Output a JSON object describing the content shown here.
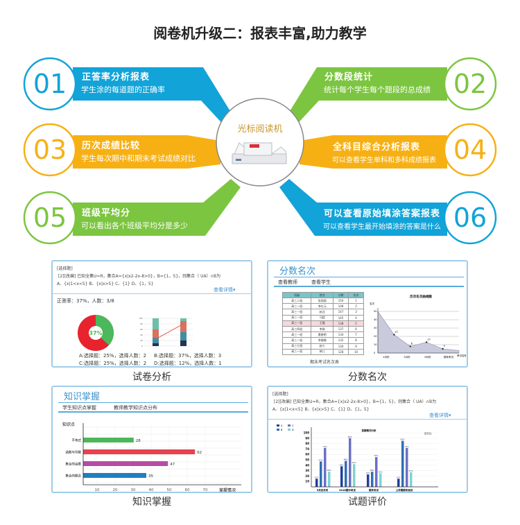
{
  "title": "阅卷机升级二：报表丰富,助力教学",
  "center": {
    "label": "光标阅读机"
  },
  "colors": {
    "blue": "#12a3d8",
    "green": "#7cc540",
    "orange": "#f7b014"
  },
  "features": [
    {
      "num": "01",
      "title": "正答率分析报表",
      "desc": "学生涂的每道题的正确率",
      "color": "blue"
    },
    {
      "num": "02",
      "title": "分数段统计",
      "desc": "统计每个学生每个题段的总成绩",
      "color": "green"
    },
    {
      "num": "03",
      "title": "历次成绩比较",
      "desc": "学生每次期中和期末考试成绩对比",
      "color": "orange"
    },
    {
      "num": "04",
      "title": "全科目综合分析报表",
      "desc": "可以查看学生单科和多科成绩报表",
      "color": "orange"
    },
    {
      "num": "05",
      "title": "班级平均分",
      "desc": "可以看出各个班级平均分是多少",
      "color": "green"
    },
    {
      "num": "06",
      "title": "可以查看原始填涂答案报表",
      "desc": "可以查看学生最开始填涂的答案是什么",
      "color": "blue"
    }
  ],
  "panels": {
    "exam": {
      "caption": "试卷分析",
      "qtype": "[选择题]",
      "question": "[2][改编] 已知全集U=R，集合A={x|x2-2x-8>0}，B={1，5}，则集合（ UA）∩B为",
      "options": "A、{x|1<x<5}    B、{x|x>5}    C、{1}    D、{1，5}",
      "detail_link": "查看详情▾",
      "rate_text": "正答率：37%，人数：3/8",
      "donut_label": "37%",
      "donut_value": 37,
      "stats": [
        "A:选择题：25%，选择人数：2",
        "B:选择题：37%，选择人数：3",
        "C:选择题：25%，选择人数：2",
        "D:选择题：12%，选择人数：1"
      ],
      "stacked": {
        "yticks": [
          0,
          20,
          40,
          60,
          80,
          100
        ],
        "bars": [
          [
            10,
            20,
            30,
            40
          ],
          [
            20,
            30,
            40,
            10
          ]
        ],
        "line": [
          25,
          80
        ],
        "colors": [
          "#1f3550",
          "#3f8fa3",
          "#d9725e",
          "#6dbfa6"
        ]
      }
    },
    "rank": {
      "caption": "分数名次",
      "title": "分数名次",
      "tabs": [
        "查看教师",
        "查看学生"
      ],
      "columns": [
        "班级",
        "姓名",
        "分数",
        "名次"
      ],
      "rows": [
        [
          "高三二班",
          "张丽丽",
          "150",
          "1"
        ],
        [
          "高三一班",
          "李红元",
          "148",
          "2"
        ],
        [
          "高三一班",
          "赵达",
          "147",
          "3"
        ],
        [
          "高三一班",
          "马超",
          "145",
          "4"
        ],
        [
          "高三一班",
          "王磊",
          "138",
          "5"
        ],
        [
          "高三四班",
          "李刚",
          "137",
          "6"
        ],
        [
          "高三一班",
          "黄晓明",
          "134",
          "7"
        ],
        [
          "高三一班",
          "李娜娜",
          "132",
          "8"
        ],
        [
          "高三七班",
          "赵小",
          "130",
          "9"
        ],
        [
          "高三一班",
          "婷儿",
          "128",
          "10"
        ]
      ],
      "table_caption": "期末考试名次表",
      "chart_title": "历次名次曲线图",
      "chart_ylabel": "名次",
      "chart_xlabel": "考试名称",
      "yticks": [
        0,
        10,
        20,
        30,
        40,
        50
      ],
      "points": [
        50,
        22,
        8,
        13,
        5,
        3
      ],
      "point_labels": [
        "",
        "22",
        "8",
        "13",
        "5",
        ""
      ],
      "xlabels": [
        "4月份",
        "5月份",
        "6月份",
        "期末考试"
      ]
    },
    "knowledge": {
      "caption": "知识掌握",
      "title": "知识掌握",
      "tabs": [
        "学生知识点掌握",
        "教师教学知识点分布"
      ],
      "ylabel": "知识点",
      "xlabel": "掌握情况",
      "xticks": [
        10,
        20,
        30,
        40,
        50,
        60,
        70
      ],
      "bars": [
        {
          "label": "不等式",
          "value": 28,
          "color": "#4cb75a"
        },
        {
          "label": "函数与导数",
          "value": 62,
          "color": "#e64250"
        },
        {
          "label": "集合的运算",
          "value": 47,
          "color": "#b44da4"
        },
        {
          "label": "集合的概念",
          "value": 35,
          "color": "#1f7fc0"
        }
      ]
    },
    "evaluation": {
      "caption": "试题评价",
      "qtype": "[选择题]",
      "question": "[2][改编] 已知全集U=R，集合A={x|x2-2x-8>0}，B={1，5}，则集合（ UA）∩B为",
      "options": "A、{x|1<x<5}    B、{x|x>5}    C、{1}    D、{1，5}",
      "detail_link": "查看详情▾",
      "legend": [
        "A",
        "B",
        "C",
        "D"
      ],
      "colors": [
        "#22409a",
        "#2f6fb5",
        "#6b6fc4",
        "#7fd3d3"
      ],
      "chart_title": "答题情况分析",
      "ylabel": "百分比",
      "yticks": [
        10,
        20,
        30,
        40,
        50,
        60,
        70,
        80,
        90,
        100
      ],
      "groups": [
        {
          "label": "5月份月考",
          "values": [
            15,
            47,
            72,
            28
          ]
        },
        {
          "label": "2018期中考试",
          "values": [
            38,
            48,
            90,
            42
          ]
        },
        {
          "label": "期末考试",
          "values": [
            23,
            28,
            55,
            25
          ]
        },
        {
          "label": "上学期期末测试",
          "values": [
            15,
            85,
            72,
            27
          ]
        }
      ]
    }
  }
}
